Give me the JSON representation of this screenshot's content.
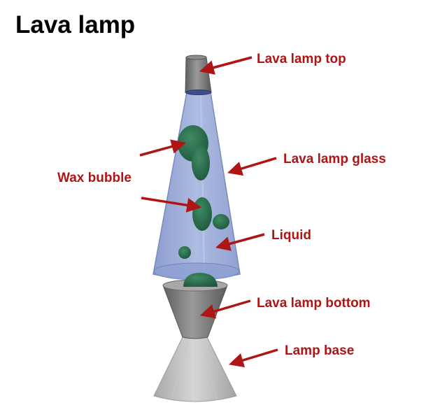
{
  "title": "Lava lamp",
  "colors": {
    "label_red": "#b01515",
    "glass": "#8c9fd2",
    "wax": "#2c6b4c",
    "metal": "#777777",
    "base": "#bdbdbd"
  },
  "labels": {
    "top": "Lava lamp top",
    "glass": "Lava lamp glass",
    "wax": "Wax bubble",
    "liquid": "Liquid",
    "bottom": "Lava lamp bottom",
    "base": "Lamp base"
  }
}
